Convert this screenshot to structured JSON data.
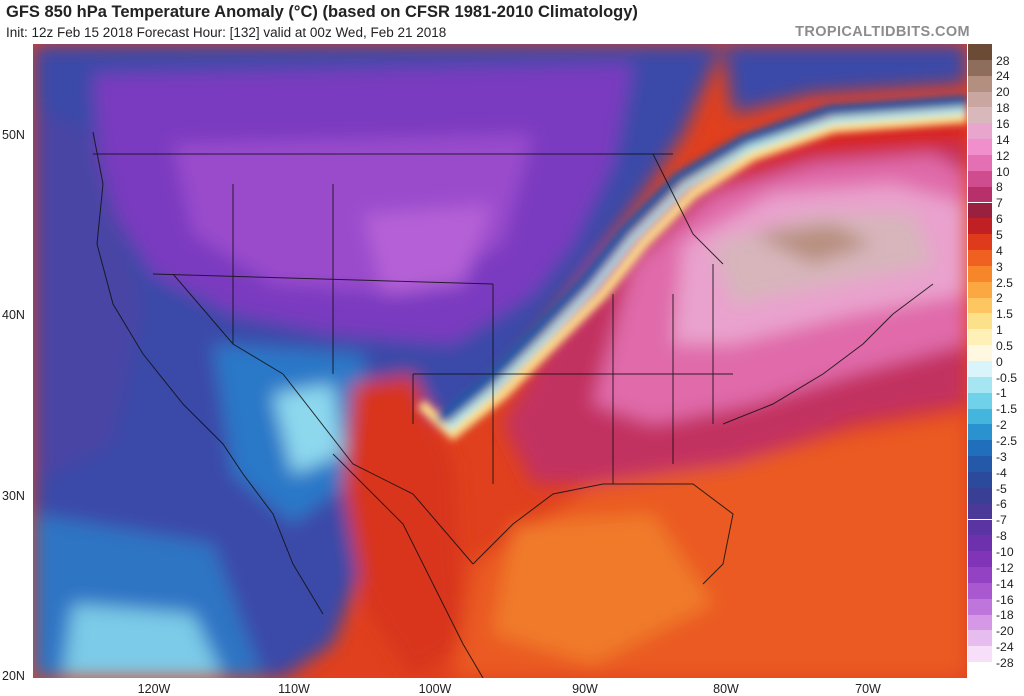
{
  "header": {
    "title": "GFS 850 hPa Temperature Anomaly (°C) (based on CFSR 1981-2010 Climatology)",
    "subtitle": "Init: 12z Feb 15 2018   Forecast Hour: [132]   valid at 00z Wed, Feb 21 2018",
    "site": "TROPICALTIDBITS.COM"
  },
  "map": {
    "lat_labels": [
      "50N",
      "40N",
      "30N",
      "20N"
    ],
    "lon_labels": [
      "120W",
      "110W",
      "100W",
      "90W",
      "80W",
      "70W"
    ]
  },
  "colorbar": {
    "labels": [
      "28",
      "24",
      "20",
      "18",
      "16",
      "14",
      "12",
      "10",
      "8",
      "7",
      "6",
      "5",
      "4",
      "3",
      "2.5",
      "2",
      "1.5",
      "1",
      "0.5",
      "0",
      "-0.5",
      "-1",
      "-1.5",
      "-2",
      "-2.5",
      "-3",
      "-4",
      "-5",
      "-6",
      "-7",
      "-8",
      "-10",
      "-12",
      "-14",
      "-16",
      "-18",
      "-20",
      "-24",
      "-28"
    ],
    "colors": [
      "#6b4a36",
      "#8f6d5c",
      "#b38f80",
      "#c9a6a0",
      "#d8b8bb",
      "#e8a6cf",
      "#f08fcb",
      "#e56fb3",
      "#cf4d8f",
      "#b8306a",
      "#9a2040",
      "#c01f23",
      "#e03a1c",
      "#f06020",
      "#f7852a",
      "#fba842",
      "#fdc661",
      "#fde08a",
      "#fff0b8",
      "#fff8e0",
      "#d9f4fa",
      "#a6e6f2",
      "#70d2ea",
      "#44b6de",
      "#2a92cf",
      "#1f6fbc",
      "#2459a9",
      "#2c4a9c",
      "#3a3f96",
      "#4a3999",
      "#5b34a3",
      "#6d31ad",
      "#8034b8",
      "#9442c4",
      "#aa58d0",
      "#be76dc",
      "#d498e6",
      "#e7bdf0",
      "#f7dff9"
    ]
  }
}
